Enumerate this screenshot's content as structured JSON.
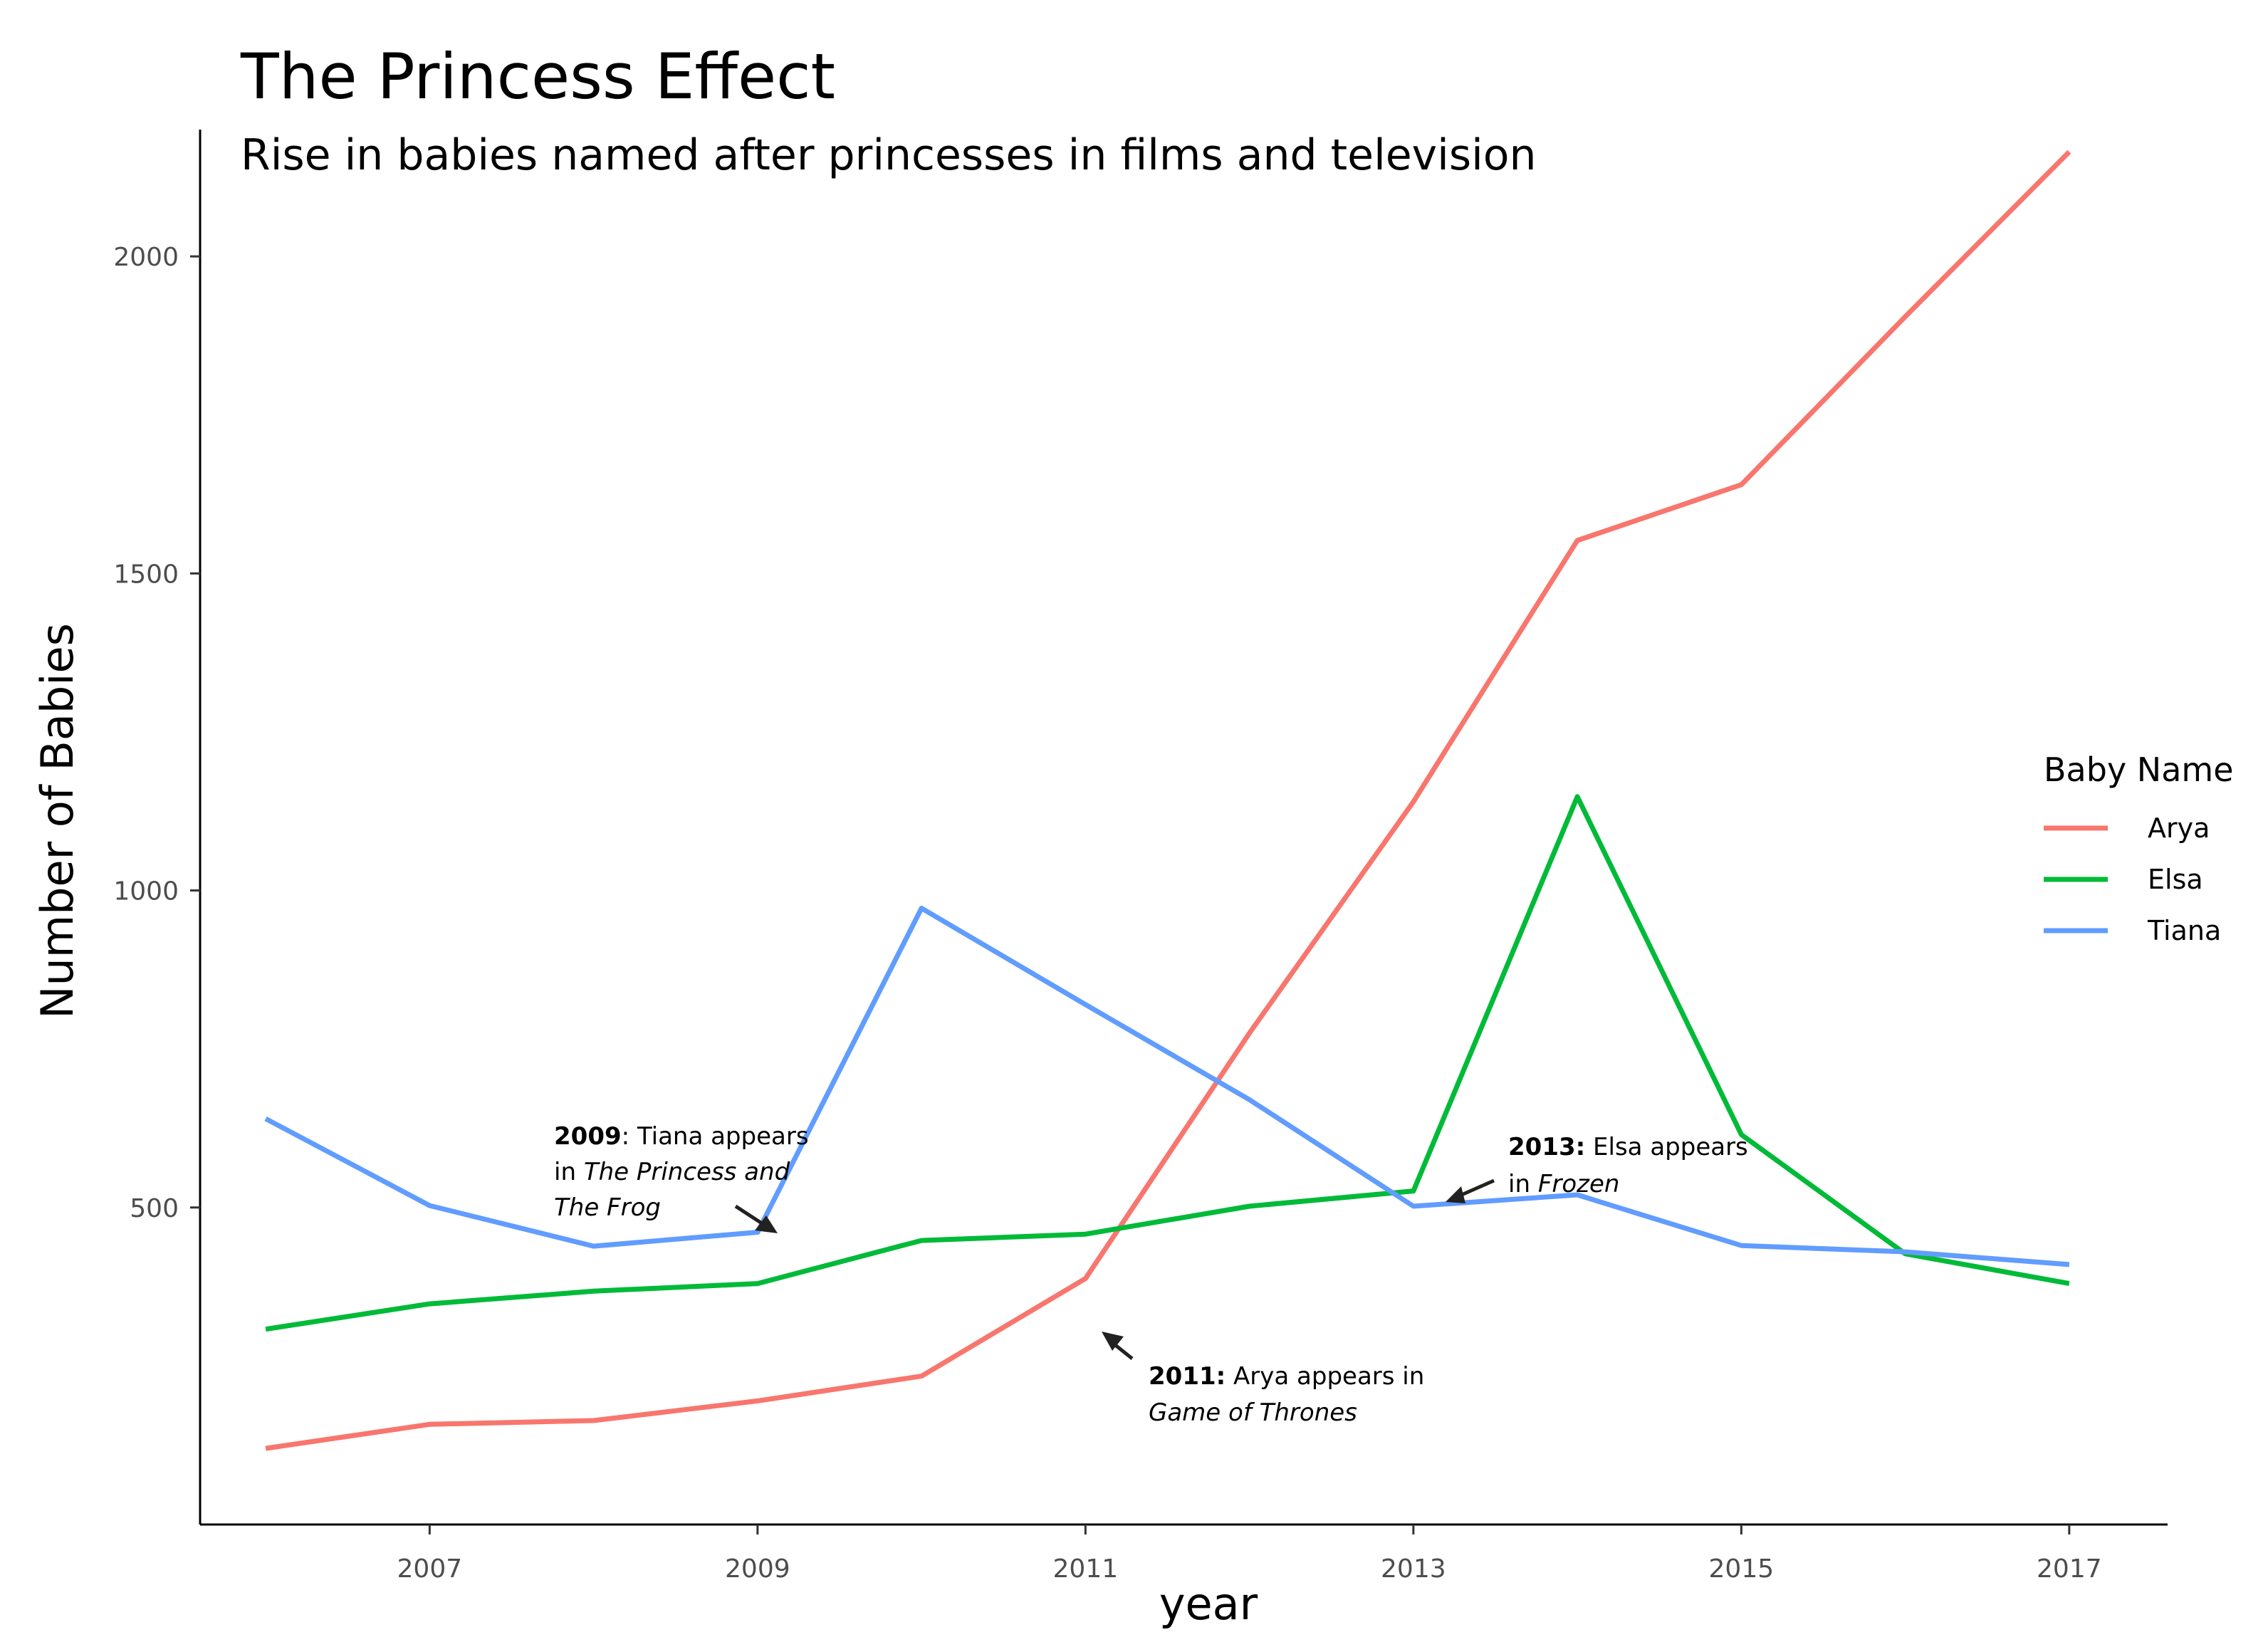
{
  "chart_data": {
    "type": "line",
    "title": "The Princess Effect",
    "subtitle": "Rise in babies named after princesses in films and television",
    "xlabel": "year",
    "ylabel": "Number of Babies",
    "xlim": [
      2005.6,
      2017.6
    ],
    "ylim": [
      0,
      2200
    ],
    "x_ticks": [
      2007,
      2009,
      2011,
      2013,
      2015,
      2017
    ],
    "y_ticks": [
      500,
      1000,
      1500,
      2000
    ],
    "grid": false,
    "legend": {
      "title": "Baby Name",
      "placement": "right"
    },
    "x": [
      2006,
      2007,
      2008,
      2009,
      2010,
      2011,
      2012,
      2013,
      2014,
      2015,
      2016,
      2017
    ],
    "series": [
      {
        "name": "Arya",
        "color": "#F8766D",
        "values": [
          120,
          158,
          164,
          195,
          234,
          388,
          775,
          1140,
          1552,
          1640,
          1905,
          2165
        ]
      },
      {
        "name": "Elsa",
        "color": "#00BA38",
        "values": [
          308,
          348,
          368,
          380,
          448,
          458,
          502,
          526,
          1148,
          615,
          427,
          380
        ]
      },
      {
        "name": "Tiana",
        "color": "#619CFF",
        "values": [
          640,
          503,
          439,
          461,
          972,
          820,
          670,
          502,
          520,
          440,
          430,
          410
        ]
      }
    ],
    "annotations": [
      {
        "bold": "2009",
        "lines": [
          [
            ": Tiana appears"
          ],
          [
            "in ",
            "The Princess and"
          ],
          [
            "The Frog"
          ]
        ],
        "italic_parts": [
          "The Princess and",
          "The Frog"
        ]
      },
      {
        "bold": "2011:",
        "lines": [
          [
            " Arya appears in"
          ],
          [
            "Game of Thrones"
          ]
        ],
        "italic_parts": [
          "Game of Thrones"
        ]
      },
      {
        "bold": "2013:",
        "lines": [
          [
            " Elsa appears"
          ],
          [
            "in ",
            "Frozen"
          ]
        ],
        "italic_parts": [
          "Frozen"
        ]
      }
    ]
  },
  "annotation_text": {
    "a2009_bold": "2009",
    "a2009_l1": ": Tiana appears",
    "a2009_l2a": "in ",
    "a2009_l2b": "The Princess and",
    "a2009_l3": "The Frog",
    "a2011_bold": "2011:",
    "a2011_l1": " Arya appears in",
    "a2011_l2": "Game of Thrones",
    "a2013_bold": "2013:",
    "a2013_l1": " Elsa appears",
    "a2013_l2a": "in ",
    "a2013_l2b": "Frozen"
  }
}
